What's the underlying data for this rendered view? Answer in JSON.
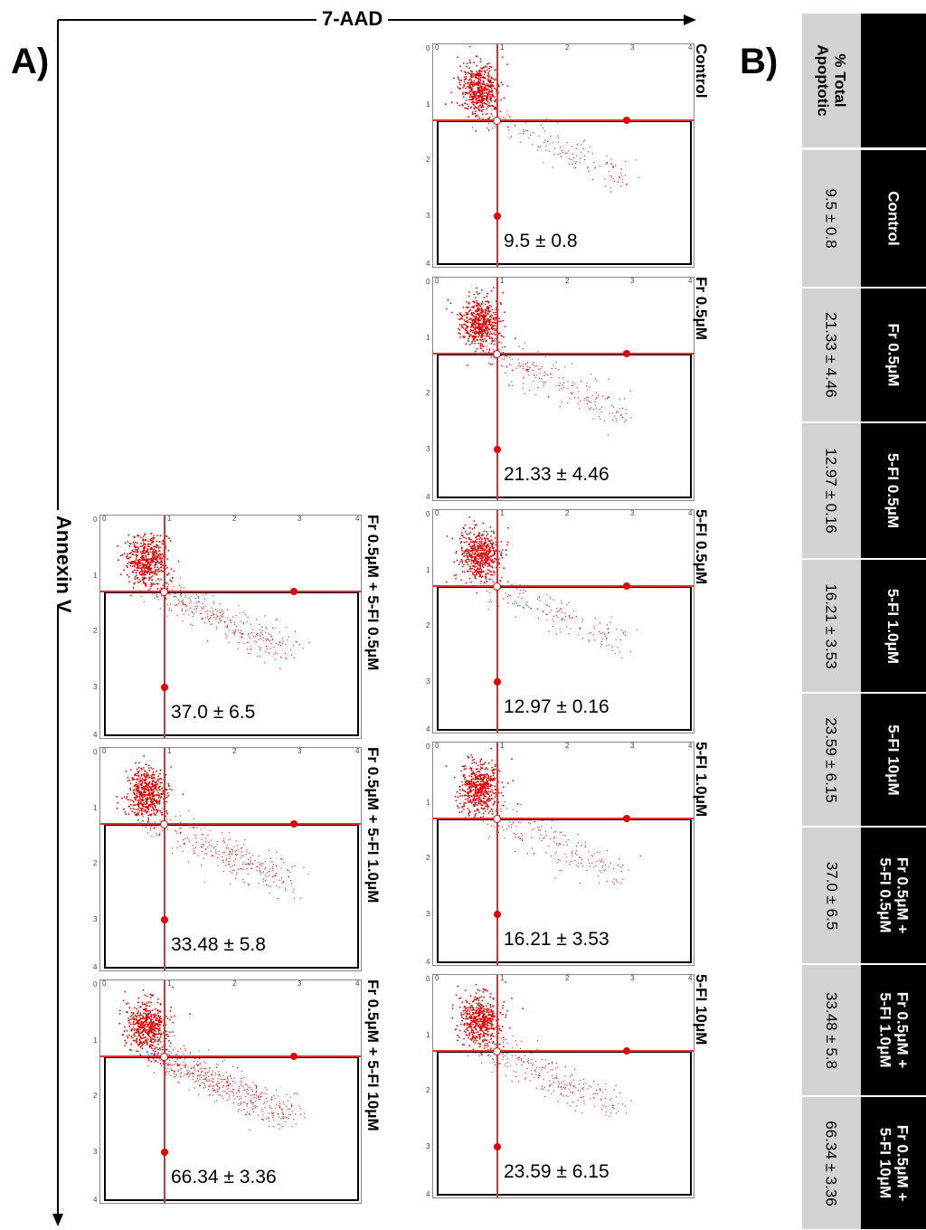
{
  "figure": {
    "panel_a_label": "A)",
    "panel_b_label": "B)",
    "x_axis_title": "7-AAD",
    "y_axis_title": "Annexin V",
    "colors": {
      "points": "#e00000",
      "gate_line": "#e03030",
      "table_header": "#000000",
      "table_row": "#d3d3d3"
    }
  },
  "chart_data": [
    {
      "type": "scatter",
      "description_axes": {
        "xlabel": "7-AAD",
        "ylabel": "Annexin V",
        "xlim": [
          0,
          4
        ],
        "ylim": [
          0,
          4
        ],
        "ticks": [
          "0",
          "1",
          "2",
          "3",
          "4"
        ]
      },
      "panels": [
        {
          "condition": "Control",
          "value": "9.5 ± 0.8",
          "total_apoptotic": 9.5
        },
        {
          "condition": "Fr 0.5μM",
          "value": "21.33 ± 4.46",
          "total_apoptotic": 21.33
        },
        {
          "condition": "5-FI 0.5μM",
          "value": "12.97 ± 0.16",
          "total_apoptotic": 12.97
        },
        {
          "condition": "5-FI 1.0μM",
          "value": "16.21 ± 3.53",
          "total_apoptotic": 16.21
        },
        {
          "condition": "5-FI 10μM",
          "value": "23.59 ± 6.15",
          "total_apoptotic": 23.59
        },
        {
          "condition": "Fr 0.5μM + 5-FI 0.5μM",
          "value": "37.0 ± 6.5",
          "total_apoptotic": 37.0
        },
        {
          "condition": "Fr 0.5μM + 5-FI 1.0μM",
          "value": "33.48 ± 5.8",
          "total_apoptotic": 33.48
        },
        {
          "condition": "Fr 0.5μM + 5-FI 10μM",
          "value": "66.34 ± 3.36",
          "total_apoptotic": 66.34
        }
      ]
    },
    {
      "type": "table",
      "header": "% Total Apoptotic",
      "columns": [
        "Control",
        "Fr 0.5μM",
        "5-FI 0.5μM",
        "5-FI 1.0μM",
        "5-FI 10μM",
        "Fr 0.5μM +\n5-FI 0.5μM",
        "Fr 0.5μM +\n5-FI 1.0μM",
        "Fr 0.5μM +\n5-FI 10μM"
      ],
      "values": [
        "9.5 ± 0.8",
        "21.33 ± 4.46",
        "12.97 ± 0.16",
        "16.21 ± 3.53",
        "23.59 ± 6.15",
        "37.0 ± 6.5",
        "33.48 ± 5.8",
        "66.34 ± 3.36"
      ]
    }
  ]
}
